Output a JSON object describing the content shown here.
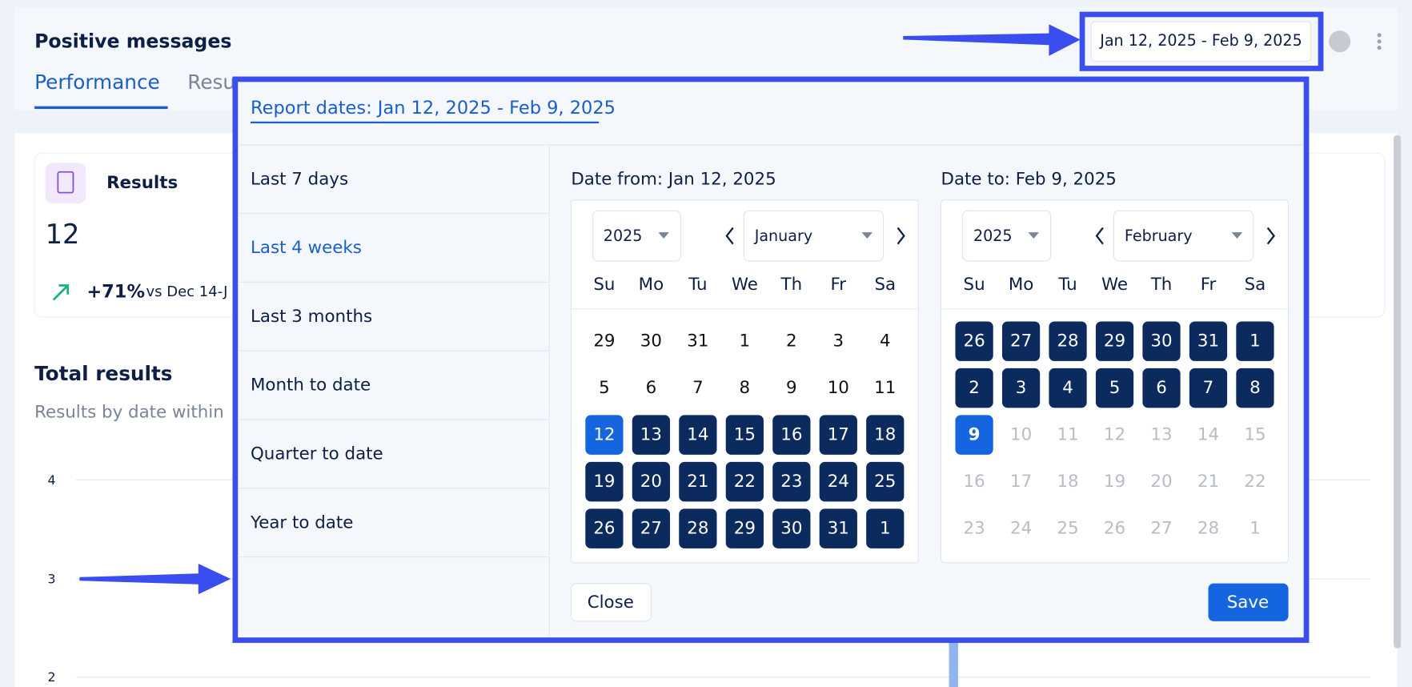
{
  "header": {
    "title": "Positive messages",
    "date_range": "Jan 12, 2025 - Feb 9, 2025"
  },
  "tabs": [
    "Performance",
    "Resu"
  ],
  "results_card": {
    "title": "Results",
    "value": "12",
    "change": "+71%",
    "comparison": "vs Dec 14-J"
  },
  "total_results": {
    "title": "Total results",
    "subtitle": "Results by date within",
    "axis_ticks": [
      "4",
      "3",
      "2"
    ]
  },
  "date_picker": {
    "title": "Report dates: Jan 12, 2025 - Feb 9, 2025",
    "presets": [
      "Last 7 days",
      "Last 4 weeks",
      "Last 3 months",
      "Month to date",
      "Quarter to date",
      "Year to date"
    ],
    "calendars": [
      {
        "label": "Date from: Jan 12, 2025",
        "year": "2025",
        "month": "January",
        "weekdays": [
          "Su",
          "Mo",
          "Tu",
          "We",
          "Th",
          "Fr",
          "Sa"
        ],
        "weeks": [
          [
            29,
            30,
            31,
            1,
            2,
            3,
            4
          ],
          [
            5,
            6,
            7,
            8,
            9,
            10,
            11
          ],
          [
            12,
            13,
            14,
            15,
            16,
            17,
            18
          ],
          [
            19,
            20,
            21,
            22,
            23,
            24,
            25
          ],
          [
            26,
            27,
            28,
            29,
            30,
            31,
            1
          ]
        ]
      },
      {
        "label": "Date to: Feb 9, 2025",
        "year": "2025",
        "month": "February",
        "weekdays": [
          "Su",
          "Mo",
          "Tu",
          "We",
          "Th",
          "Fr",
          "Sa"
        ],
        "weeks": [
          [
            26,
            27,
            28,
            29,
            30,
            31,
            1
          ],
          [
            2,
            3,
            4,
            5,
            6,
            7,
            8
          ],
          [
            9,
            10,
            11,
            12,
            13,
            14,
            15
          ],
          [
            16,
            17,
            18,
            19,
            20,
            21,
            22
          ],
          [
            23,
            24,
            25,
            26,
            27,
            28,
            1
          ]
        ]
      }
    ],
    "buttons": {
      "close": "Close",
      "save": "Save"
    }
  }
}
